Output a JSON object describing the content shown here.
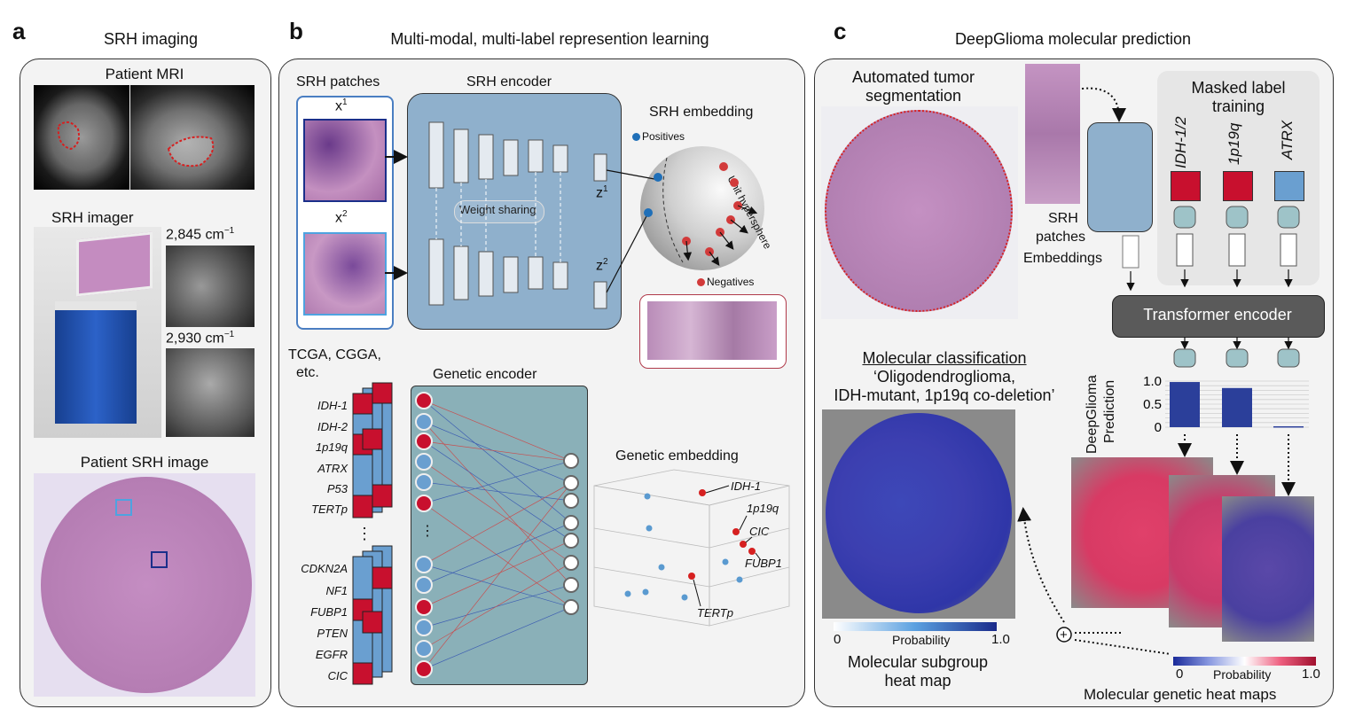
{
  "panel_a": {
    "letter": "a",
    "title": "SRH imaging",
    "mri_label": "Patient MRI",
    "imager_label": "SRH imager",
    "wavenumber_1": "2,845 cm",
    "wavenumber_2": "2,930 cm",
    "exponent": "−1",
    "srh_image_label": "Patient SRH image"
  },
  "panel_b": {
    "letter": "b",
    "title": "Multi-modal, multi-label represention learning",
    "patches_label": "SRH patches",
    "x1": "x",
    "x2": "x",
    "sup1": "1",
    "sup2": "2",
    "encoder_label": "SRH encoder",
    "weight_sharing": "Weight sharing",
    "z1": "z",
    "z2": "z",
    "embedding_label": "SRH embedding",
    "positives": "Positives",
    "negatives": "Negatives",
    "hypersphere": "Unit hypersphere",
    "datasets": "TCGA, CGGA,",
    "datasets_2": "etc.",
    "genetic_encoder": "Genetic encoder",
    "genetic_embedding": "Genetic embedding",
    "genes_top": [
      "IDH-1",
      "IDH-2",
      "1p19q",
      "ATRX",
      "P53",
      "TERTp"
    ],
    "genes_bottom": [
      "CDKN2A",
      "NF1",
      "FUBP1",
      "PTEN",
      "EGFR",
      "CIC"
    ],
    "ellipsis": "⋮",
    "embedding_points": [
      "IDH-1",
      "1p19q",
      "CIC",
      "FUBP1",
      "TERTp"
    ]
  },
  "panel_c": {
    "letter": "c",
    "title": "DeepGlioma molecular prediction",
    "segmentation": "Automated tumor",
    "segmentation_2": "segmentation",
    "srh": "SRH",
    "patches": "patches",
    "embeddings": "Embeddings",
    "masked": "Masked label",
    "masked_2": "training",
    "labels": [
      "IDH-1/2",
      "1p19q",
      "ATRX"
    ],
    "transformer": "Transformer encoder",
    "classification_title": "Molecular classification",
    "classification_1": "‘Oligodendroglioma,",
    "classification_2": "IDH-mutant, 1p19q co-deletion’",
    "prediction_label": "DeepGlioma",
    "prediction_label_2": "Prediction",
    "subgroup": "Molecular subgroup",
    "subgroup_2": "heat map",
    "genetic_maps": "Molecular genetic heat maps",
    "prob_label": "Probability",
    "scale_0": "0",
    "scale_1": "1.0",
    "plus": "+"
  },
  "chart_data": {
    "type": "bar",
    "categories": [
      "IDH-1/2",
      "1p19q",
      "ATRX"
    ],
    "values": [
      0.98,
      0.85,
      0.02
    ],
    "ylabel": "DeepGlioma Prediction",
    "yticks": [
      "1.0",
      "0.5",
      "0"
    ],
    "ylim": [
      0,
      1.0
    ]
  },
  "colors": {
    "mut_red": "#c8102e",
    "wt_blue": "#6a9fd0",
    "encoder_blue": "#8fb0cc",
    "bar_blue": "#2b3f9a",
    "tissue_pink": "#c88fc0"
  }
}
